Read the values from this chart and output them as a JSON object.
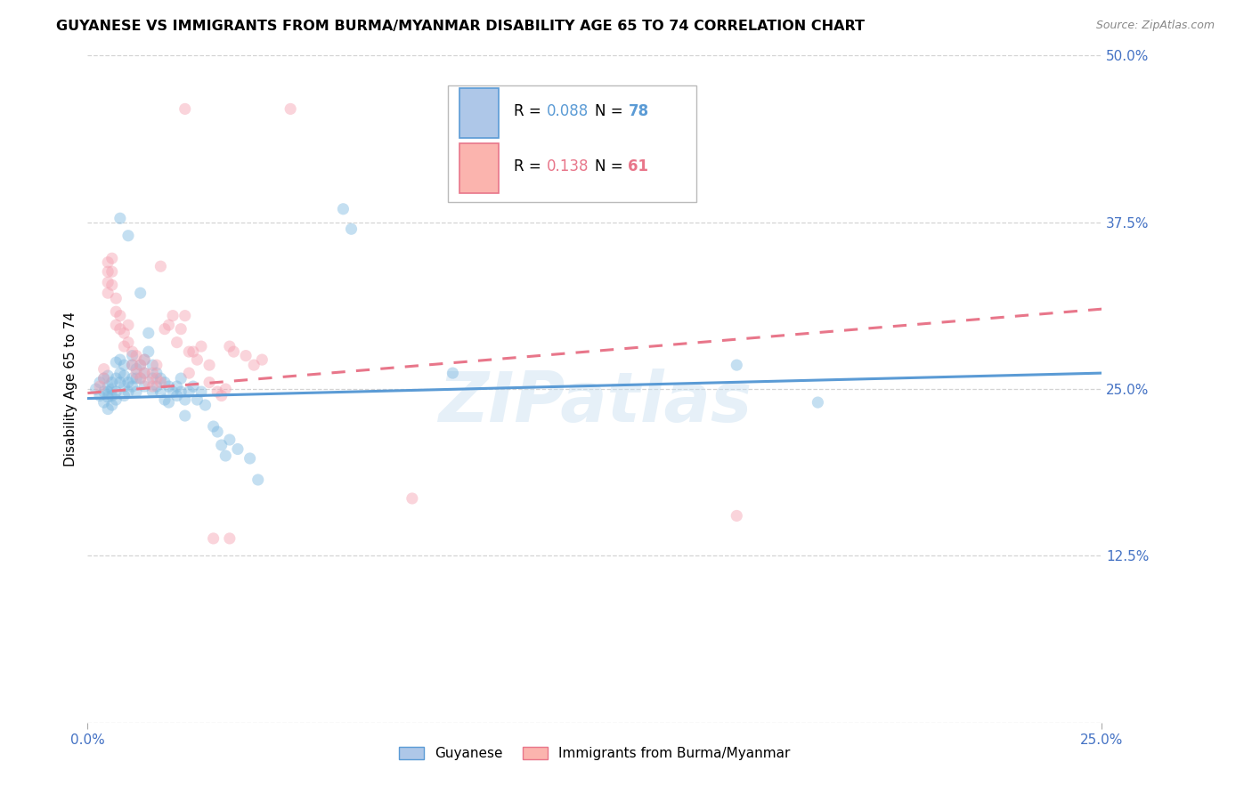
{
  "title": "GUYANESE VS IMMIGRANTS FROM BURMA/MYANMAR DISABILITY AGE 65 TO 74 CORRELATION CHART",
  "source": "Source: ZipAtlas.com",
  "ylabel": "Disability Age 65 to 74",
  "xlim": [
    0.0,
    0.25
  ],
  "ylim": [
    0.0,
    0.5
  ],
  "yticks": [
    0.0,
    0.125,
    0.25,
    0.375,
    0.5
  ],
  "ytick_labels": [
    "",
    "12.5%",
    "25.0%",
    "37.5%",
    "50.0%"
  ],
  "xticks": [
    0.0,
    0.25
  ],
  "xtick_labels": [
    "0.0%",
    "25.0%"
  ],
  "legend_R1": "0.088",
  "legend_N1": "78",
  "legend_R2": "0.138",
  "legend_N2": "61",
  "legend_label1": "Guyanese",
  "legend_label2": "Immigrants from Burma/Myanmar",
  "blue_color": "#5b9bd5",
  "pink_color": "#e8768a",
  "blue_scatter_color": "#7db8e0",
  "pink_scatter_color": "#f4a0b0",
  "blue_line": {
    "x0": 0.0,
    "y0": 0.243,
    "x1": 0.25,
    "y1": 0.262
  },
  "pink_line": {
    "x0": 0.0,
    "y0": 0.247,
    "x1": 0.25,
    "y1": 0.31
  },
  "guyanese_points": [
    [
      0.002,
      0.25
    ],
    [
      0.003,
      0.245
    ],
    [
      0.003,
      0.255
    ],
    [
      0.004,
      0.248
    ],
    [
      0.004,
      0.24
    ],
    [
      0.004,
      0.258
    ],
    [
      0.005,
      0.252
    ],
    [
      0.005,
      0.244
    ],
    [
      0.005,
      0.26
    ],
    [
      0.005,
      0.235
    ],
    [
      0.005,
      0.248
    ],
    [
      0.006,
      0.25
    ],
    [
      0.006,
      0.245
    ],
    [
      0.006,
      0.238
    ],
    [
      0.006,
      0.255
    ],
    [
      0.007,
      0.258
    ],
    [
      0.007,
      0.248
    ],
    [
      0.007,
      0.27
    ],
    [
      0.007,
      0.242
    ],
    [
      0.008,
      0.262
    ],
    [
      0.008,
      0.255
    ],
    [
      0.008,
      0.272
    ],
    [
      0.008,
      0.378
    ],
    [
      0.009,
      0.26
    ],
    [
      0.009,
      0.252
    ],
    [
      0.009,
      0.245
    ],
    [
      0.009,
      0.268
    ],
    [
      0.01,
      0.255
    ],
    [
      0.01,
      0.248
    ],
    [
      0.01,
      0.365
    ],
    [
      0.011,
      0.268
    ],
    [
      0.011,
      0.258
    ],
    [
      0.011,
      0.275
    ],
    [
      0.011,
      0.252
    ],
    [
      0.012,
      0.265
    ],
    [
      0.012,
      0.258
    ],
    [
      0.012,
      0.248
    ],
    [
      0.013,
      0.268
    ],
    [
      0.013,
      0.258
    ],
    [
      0.013,
      0.322
    ],
    [
      0.014,
      0.272
    ],
    [
      0.014,
      0.262
    ],
    [
      0.014,
      0.252
    ],
    [
      0.015,
      0.292
    ],
    [
      0.015,
      0.278
    ],
    [
      0.016,
      0.268
    ],
    [
      0.016,
      0.258
    ],
    [
      0.016,
      0.248
    ],
    [
      0.017,
      0.262
    ],
    [
      0.017,
      0.252
    ],
    [
      0.018,
      0.258
    ],
    [
      0.018,
      0.248
    ],
    [
      0.019,
      0.255
    ],
    [
      0.019,
      0.242
    ],
    [
      0.02,
      0.252
    ],
    [
      0.02,
      0.24
    ],
    [
      0.021,
      0.248
    ],
    [
      0.022,
      0.252
    ],
    [
      0.022,
      0.245
    ],
    [
      0.023,
      0.258
    ],
    [
      0.023,
      0.248
    ],
    [
      0.024,
      0.242
    ],
    [
      0.024,
      0.23
    ],
    [
      0.025,
      0.248
    ],
    [
      0.026,
      0.252
    ],
    [
      0.027,
      0.242
    ],
    [
      0.028,
      0.248
    ],
    [
      0.029,
      0.238
    ],
    [
      0.031,
      0.222
    ],
    [
      0.032,
      0.218
    ],
    [
      0.033,
      0.208
    ],
    [
      0.034,
      0.2
    ],
    [
      0.035,
      0.212
    ],
    [
      0.037,
      0.205
    ],
    [
      0.04,
      0.198
    ],
    [
      0.042,
      0.182
    ],
    [
      0.063,
      0.385
    ],
    [
      0.065,
      0.37
    ],
    [
      0.09,
      0.262
    ],
    [
      0.16,
      0.268
    ],
    [
      0.18,
      0.24
    ]
  ],
  "burma_points": [
    [
      0.003,
      0.252
    ],
    [
      0.004,
      0.258
    ],
    [
      0.004,
      0.265
    ],
    [
      0.005,
      0.338
    ],
    [
      0.005,
      0.33
    ],
    [
      0.005,
      0.345
    ],
    [
      0.005,
      0.322
    ],
    [
      0.006,
      0.348
    ],
    [
      0.006,
      0.338
    ],
    [
      0.006,
      0.328
    ],
    [
      0.007,
      0.318
    ],
    [
      0.007,
      0.308
    ],
    [
      0.007,
      0.298
    ],
    [
      0.008,
      0.305
    ],
    [
      0.008,
      0.295
    ],
    [
      0.009,
      0.292
    ],
    [
      0.009,
      0.282
    ],
    [
      0.01,
      0.298
    ],
    [
      0.01,
      0.285
    ],
    [
      0.011,
      0.278
    ],
    [
      0.011,
      0.268
    ],
    [
      0.012,
      0.275
    ],
    [
      0.012,
      0.262
    ],
    [
      0.013,
      0.268
    ],
    [
      0.013,
      0.258
    ],
    [
      0.014,
      0.272
    ],
    [
      0.014,
      0.262
    ],
    [
      0.015,
      0.255
    ],
    [
      0.016,
      0.262
    ],
    [
      0.016,
      0.252
    ],
    [
      0.017,
      0.268
    ],
    [
      0.017,
      0.258
    ],
    [
      0.018,
      0.342
    ],
    [
      0.018,
      0.255
    ],
    [
      0.019,
      0.295
    ],
    [
      0.02,
      0.298
    ],
    [
      0.021,
      0.305
    ],
    [
      0.022,
      0.285
    ],
    [
      0.023,
      0.295
    ],
    [
      0.024,
      0.305
    ],
    [
      0.024,
      0.46
    ],
    [
      0.025,
      0.278
    ],
    [
      0.025,
      0.262
    ],
    [
      0.026,
      0.278
    ],
    [
      0.027,
      0.272
    ],
    [
      0.028,
      0.282
    ],
    [
      0.03,
      0.268
    ],
    [
      0.03,
      0.255
    ],
    [
      0.032,
      0.248
    ],
    [
      0.033,
      0.245
    ],
    [
      0.034,
      0.25
    ],
    [
      0.035,
      0.138
    ],
    [
      0.035,
      0.282
    ],
    [
      0.036,
      0.278
    ],
    [
      0.039,
      0.275
    ],
    [
      0.041,
      0.268
    ],
    [
      0.043,
      0.272
    ],
    [
      0.031,
      0.138
    ],
    [
      0.05,
      0.46
    ],
    [
      0.08,
      0.168
    ],
    [
      0.16,
      0.155
    ]
  ],
  "background_color": "#ffffff",
  "grid_color": "#d0d0d0",
  "tick_color": "#4472c4",
  "title_fontsize": 11.5,
  "source_fontsize": 9,
  "axis_label_fontsize": 11,
  "tick_fontsize": 11,
  "marker_size": 90,
  "marker_alpha": 0.45,
  "line_width": 2.2,
  "watermark": "ZIPatlas"
}
